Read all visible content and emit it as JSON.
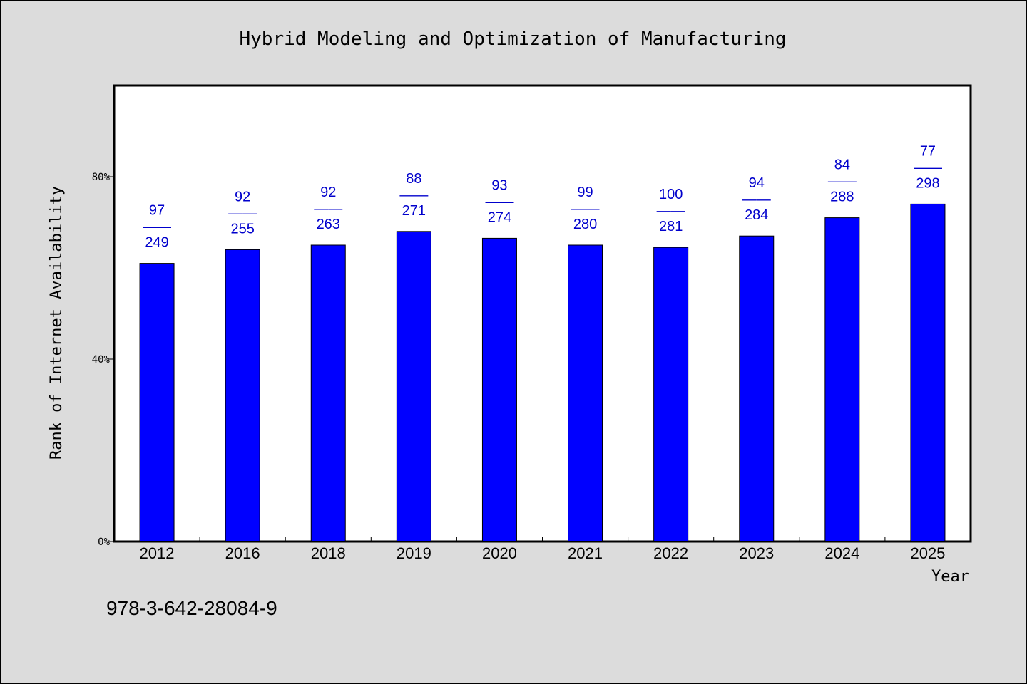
{
  "chart_data": {
    "type": "bar",
    "title": "Hybrid Modeling and Optimization of Manufacturing",
    "xlabel": "Year",
    "ylabel": "Rank of Internet Availability",
    "ylim": [
      0,
      100
    ],
    "yticks": [
      0,
      40,
      80
    ],
    "ytick_labels": [
      "0%",
      "40%",
      "80%"
    ],
    "grid": false,
    "categories": [
      "2012",
      "2016",
      "2018",
      "2019",
      "2020",
      "2021",
      "2022",
      "2023",
      "2024",
      "2025"
    ],
    "values": [
      61,
      64,
      65,
      68,
      66.5,
      65,
      64.5,
      67,
      71,
      74
    ],
    "bar_labels": [
      {
        "top": "97",
        "bottom": "249"
      },
      {
        "top": "92",
        "bottom": "255"
      },
      {
        "top": "92",
        "bottom": "263"
      },
      {
        "top": "88",
        "bottom": "271"
      },
      {
        "top": "93",
        "bottom": "274"
      },
      {
        "top": "99",
        "bottom": "280"
      },
      {
        "top": "100",
        "bottom": "281"
      },
      {
        "top": "94",
        "bottom": "284"
      },
      {
        "top": "84",
        "bottom": "288"
      },
      {
        "top": "77",
        "bottom": "298"
      }
    ],
    "label_separator": "——",
    "colors": {
      "bar": "#0000ff",
      "label": "#0000cc",
      "plot_background": "#ffffff",
      "page_background": "#dcdcdc"
    }
  },
  "footer": {
    "isbn": "978-3-642-28084-9"
  }
}
